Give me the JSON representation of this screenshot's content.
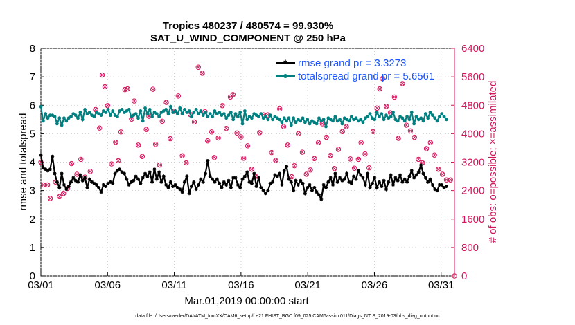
{
  "chart_data": {
    "type": "line",
    "title_line1": "Tropics 480237 / 480574 = 99.930%",
    "title_line2": "SAT_U_WIND_COMPONENT @ 250 hPa",
    "xlabel": "Mar.01,2019 00:00:00 start",
    "ylabel_left": "rmse and totalspread",
    "ylabel_right": "# of obs: o=possible; ×=assimilated",
    "x_tick_labels": [
      "03/01",
      "03/06",
      "03/11",
      "03/16",
      "03/21",
      "03/26",
      "03/31"
    ],
    "x_tick_days": [
      0,
      5,
      10,
      15,
      20,
      25,
      30
    ],
    "xlim": [
      0,
      31
    ],
    "ylim_left": [
      0,
      8
    ],
    "left_ticks": [
      "0",
      "1",
      "2",
      "3",
      "4",
      "5",
      "6",
      "7",
      "8"
    ],
    "ylim_right": [
      0,
      6400
    ],
    "right_ticks": [
      "0",
      "800",
      "1600",
      "2400",
      "3200",
      "4000",
      "4800",
      "5600",
      "6400"
    ],
    "legend": {
      "position": "top-right",
      "entries": [
        "rmse grand pr = 3.3273",
        "totalspread grand pr = 5.6561"
      ]
    },
    "colors": {
      "rmse": "#000000",
      "totalspread": "#008080",
      "obs": "#d4145a",
      "legend_text": "#1a53ff",
      "right_axis": "#d4145a"
    },
    "series": [
      {
        "name": "rmse",
        "values": [
          4.25,
          3.8,
          3.75,
          3.7,
          3.75,
          4.2,
          3.6,
          3.3,
          3.1,
          3.6,
          3.2,
          3.05,
          3.15,
          3.3,
          3.45,
          3.35,
          3.3,
          3.55,
          3.35,
          3.45,
          3.1,
          3.4,
          3.3,
          3.25,
          3.2,
          3.1,
          2.95,
          3.2,
          3.15,
          3.25,
          3.3,
          3.25,
          3.6,
          3.7,
          3.75,
          3.65,
          3.6,
          3.4,
          3.2,
          3.3,
          3.35,
          3.5,
          3.4,
          3.25,
          3.45,
          3.6,
          3.5,
          3.65,
          3.3,
          3.75,
          3.4,
          3.65,
          3.3,
          3.5,
          3.2,
          3.1,
          3.3,
          3.15,
          3.2,
          3.1,
          3.05,
          2.95,
          3.3,
          3.5,
          2.9,
          3.15,
          3.3,
          3.05,
          3.2,
          3.4,
          3.3,
          3.6,
          4.05,
          3.5,
          3.4,
          3.3,
          3.4,
          3.25,
          3.1,
          3.3,
          3.2,
          3.35,
          3.1,
          3.45,
          3.45,
          3.2,
          3.1,
          3.4,
          3.5,
          3.65,
          3.3,
          3.25,
          3.6,
          3.15,
          3.45,
          3.1,
          3.0,
          2.9,
          3.0,
          3.25,
          3.3,
          3.55,
          3.5,
          3.6,
          3.2,
          3.7,
          3.85,
          3.4,
          3.3,
          3.0,
          3.35,
          3.2,
          3.35,
          3.25,
          2.9,
          3.1,
          3.2,
          3.0,
          3.1,
          2.95,
          2.85,
          2.7,
          3.2,
          3.1,
          3.3,
          3.45,
          3.2,
          3.6,
          3.3,
          3.45,
          3.35,
          3.4,
          3.6,
          3.3,
          3.25,
          3.5,
          3.4,
          3.7,
          3.55,
          3.45,
          3.2,
          3.6,
          3.1,
          3.25,
          3.45,
          3.1,
          3.3,
          3.15,
          3.35,
          3.05,
          3.3,
          3.55,
          3.2,
          3.45,
          3.35,
          3.55,
          3.3,
          3.4,
          3.3,
          3.5,
          3.7,
          3.45,
          3.55,
          3.65,
          3.9,
          3.6,
          3.45,
          3.3,
          3.4,
          3.2,
          3.05,
          3.0,
          3.2,
          3.2,
          3.1,
          3.15
        ]
      },
      {
        "name": "totalspread",
        "values": [
          5.95,
          5.45,
          5.7,
          5.55,
          5.65,
          5.65,
          5.6,
          5.35,
          5.55,
          5.3,
          5.55,
          5.45,
          5.55,
          5.6,
          5.7,
          5.65,
          5.55,
          5.75,
          5.5,
          5.85,
          5.7,
          5.75,
          5.65,
          5.6,
          5.75,
          5.7,
          5.65,
          5.8,
          5.75,
          5.85,
          5.65,
          5.8,
          5.65,
          5.6,
          5.8,
          5.85,
          5.75,
          5.8,
          5.85,
          5.6,
          5.65,
          5.7,
          5.55,
          5.8,
          5.45,
          5.9,
          5.7,
          5.85,
          5.6,
          5.75,
          5.7,
          5.6,
          5.75,
          5.8,
          5.85,
          5.7,
          5.95,
          5.75,
          5.8,
          5.7,
          5.9,
          5.7,
          5.85,
          5.75,
          5.8,
          5.6,
          5.75,
          5.85,
          5.7,
          5.8,
          5.65,
          5.75,
          5.6,
          5.7,
          5.6,
          5.8,
          5.7,
          5.75,
          5.65,
          5.7,
          5.55,
          5.65,
          5.75,
          5.5,
          5.7,
          5.6,
          5.75,
          5.35,
          5.8,
          5.5,
          5.6,
          5.55,
          5.7,
          5.65,
          5.6,
          5.7,
          5.55,
          5.6,
          5.5,
          5.65,
          5.5,
          5.6,
          5.55,
          5.5,
          5.4,
          5.55,
          5.45,
          5.55,
          5.3,
          5.55,
          5.4,
          5.5,
          5.45,
          5.55,
          5.4,
          5.5,
          5.35,
          5.45,
          5.4,
          5.35,
          5.55,
          5.45,
          5.5,
          5.25,
          5.55,
          5.5,
          5.45,
          5.6,
          5.45,
          5.5,
          5.35,
          5.55,
          5.5,
          5.45,
          5.6,
          5.5,
          5.55,
          5.45,
          5.5,
          5.4,
          5.55,
          5.6,
          5.7,
          5.55,
          5.5,
          5.75,
          5.6,
          5.7,
          5.5,
          5.65,
          5.55,
          5.6,
          5.75,
          5.5,
          5.45,
          5.6,
          5.55,
          5.45,
          5.6,
          5.5,
          5.75,
          5.35,
          5.6,
          5.5,
          5.55,
          5.45,
          5.7,
          5.55,
          5.75,
          5.65,
          5.55,
          5.45,
          5.6,
          5.7,
          5.6,
          5.5
        ]
      }
    ],
    "obs_assimilated": [
      [
        0,
        3200
      ],
      [
        0.2,
        2560
      ],
      [
        0.5,
        2560
      ],
      [
        0.7,
        2180
      ],
      [
        1.1,
        2640
      ],
      [
        1.4,
        2230
      ],
      [
        1.7,
        2320
      ],
      [
        2.0,
        2460
      ],
      [
        2.3,
        3160
      ],
      [
        2.7,
        2860
      ],
      [
        3.0,
        3280
      ],
      [
        3.3,
        2780
      ],
      [
        3.7,
        2940
      ],
      [
        4.1,
        4680
      ],
      [
        4.4,
        4160
      ],
      [
        4.6,
        5650
      ],
      [
        4.8,
        5320
      ],
      [
        5.0,
        4790
      ],
      [
        5.3,
        3150
      ],
      [
        5.6,
        3760
      ],
      [
        5.8,
        3240
      ],
      [
        6.0,
        4050
      ],
      [
        6.3,
        5240
      ],
      [
        6.5,
        5260
      ],
      [
        6.8,
        4410
      ],
      [
        7.0,
        4920
      ],
      [
        7.3,
        3680
      ],
      [
        7.6,
        3360
      ],
      [
        7.9,
        4120
      ],
      [
        8.1,
        4490
      ],
      [
        8.4,
        5250
      ],
      [
        8.6,
        3700
      ],
      [
        8.9,
        3120
      ],
      [
        9.1,
        4350
      ],
      [
        9.4,
        4880
      ],
      [
        9.7,
        3860
      ],
      [
        10.0,
        4630
      ],
      [
        10.3,
        5060
      ],
      [
        10.6,
        3380
      ],
      [
        10.9,
        3180
      ],
      [
        11.2,
        4540
      ],
      [
        11.5,
        4330
      ],
      [
        11.8,
        5870
      ],
      [
        12.1,
        5700
      ],
      [
        12.3,
        4620
      ],
      [
        12.5,
        3800
      ],
      [
        12.8,
        4050
      ],
      [
        13.0,
        3330
      ],
      [
        13.3,
        3880
      ],
      [
        13.6,
        4790
      ],
      [
        13.9,
        4150
      ],
      [
        14.2,
        5030
      ],
      [
        14.4,
        5100
      ],
      [
        14.7,
        4020
      ],
      [
        15.0,
        3910
      ],
      [
        15.2,
        3310
      ],
      [
        15.5,
        3660
      ],
      [
        15.8,
        3000
      ],
      [
        16.1,
        2800
      ],
      [
        16.4,
        4030
      ],
      [
        16.7,
        4530
      ],
      [
        17.0,
        4530
      ],
      [
        17.3,
        3470
      ],
      [
        17.6,
        3250
      ],
      [
        17.9,
        4700
      ],
      [
        18.2,
        4200
      ],
      [
        18.5,
        3680
      ],
      [
        18.8,
        2790
      ],
      [
        19.0,
        3100
      ],
      [
        19.3,
        4000
      ],
      [
        19.6,
        3480
      ],
      [
        19.9,
        2860
      ],
      [
        20.2,
        2980
      ],
      [
        20.5,
        3300
      ],
      [
        20.8,
        3750
      ],
      [
        21.1,
        4280
      ],
      [
        21.4,
        3900
      ],
      [
        21.7,
        3390
      ],
      [
        22.0,
        3020
      ],
      [
        22.3,
        3560
      ],
      [
        22.6,
        4060
      ],
      [
        22.9,
        4200
      ],
      [
        23.2,
        3290
      ],
      [
        23.5,
        3030
      ],
      [
        23.8,
        3280
      ],
      [
        24.0,
        3750
      ],
      [
        24.3,
        3430
      ],
      [
        24.6,
        3040
      ],
      [
        24.9,
        4060
      ],
      [
        25.2,
        4720
      ],
      [
        25.4,
        5260
      ],
      [
        25.6,
        5550
      ],
      [
        25.9,
        4770
      ],
      [
        26.2,
        4590
      ],
      [
        26.5,
        5030
      ],
      [
        26.8,
        3870
      ],
      [
        27.1,
        5410
      ],
      [
        27.4,
        4240
      ],
      [
        27.7,
        4080
      ],
      [
        28.0,
        3900
      ],
      [
        28.3,
        3280
      ],
      [
        28.6,
        3180
      ],
      [
        28.9,
        3580
      ],
      [
        29.2,
        3750
      ],
      [
        29.5,
        3400
      ],
      [
        29.8,
        3000
      ],
      [
        30.1,
        2860
      ],
      [
        30.4,
        2700
      ],
      [
        30.7,
        2700
      ]
    ],
    "obs_possible": [
      [
        0,
        3200
      ],
      [
        0.2,
        2560
      ],
      [
        0.5,
        2560
      ],
      [
        0.7,
        2180
      ],
      [
        1.1,
        2640
      ],
      [
        1.4,
        2230
      ],
      [
        1.7,
        2320
      ],
      [
        2.0,
        2460
      ],
      [
        2.3,
        3160
      ],
      [
        2.7,
        2860
      ],
      [
        3.0,
        3280
      ],
      [
        3.3,
        2780
      ],
      [
        3.7,
        2940
      ],
      [
        4.1,
        4680
      ],
      [
        4.4,
        4160
      ],
      [
        4.6,
        5650
      ],
      [
        4.8,
        5320
      ],
      [
        5.0,
        4790
      ],
      [
        5.3,
        3150
      ],
      [
        5.6,
        3760
      ],
      [
        5.8,
        3240
      ],
      [
        6.0,
        4050
      ],
      [
        6.3,
        5240
      ],
      [
        6.5,
        5260
      ],
      [
        6.8,
        4410
      ],
      [
        7.0,
        4920
      ],
      [
        7.3,
        3680
      ],
      [
        7.6,
        3360
      ],
      [
        7.9,
        4120
      ],
      [
        8.1,
        4490
      ],
      [
        8.4,
        5250
      ],
      [
        8.6,
        3700
      ],
      [
        8.9,
        3120
      ],
      [
        9.1,
        4350
      ],
      [
        9.4,
        4880
      ],
      [
        9.7,
        3860
      ],
      [
        10.0,
        4630
      ],
      [
        10.3,
        5060
      ],
      [
        10.6,
        3380
      ],
      [
        10.9,
        3180
      ],
      [
        11.2,
        4540
      ],
      [
        11.5,
        4330
      ],
      [
        11.8,
        5870
      ],
      [
        12.1,
        5700
      ],
      [
        12.3,
        4620
      ],
      [
        12.5,
        3800
      ],
      [
        12.8,
        4050
      ],
      [
        13.0,
        3330
      ],
      [
        13.3,
        3880
      ],
      [
        13.6,
        4790
      ],
      [
        13.9,
        4150
      ],
      [
        14.2,
        5030
      ],
      [
        14.4,
        5100
      ],
      [
        14.7,
        4020
      ],
      [
        15.0,
        3910
      ],
      [
        15.2,
        3310
      ],
      [
        15.5,
        3660
      ],
      [
        15.8,
        3000
      ],
      [
        16.1,
        2800
      ],
      [
        16.4,
        4030
      ],
      [
        16.7,
        4530
      ],
      [
        17.0,
        4530
      ],
      [
        17.3,
        3470
      ],
      [
        17.6,
        3250
      ],
      [
        17.9,
        4700
      ],
      [
        18.2,
        4200
      ],
      [
        18.5,
        3680
      ],
      [
        18.8,
        2790
      ],
      [
        19.0,
        3100
      ],
      [
        19.3,
        4000
      ],
      [
        19.6,
        3480
      ],
      [
        19.9,
        2860
      ],
      [
        20.2,
        2980
      ],
      [
        20.5,
        3300
      ],
      [
        20.8,
        3750
      ],
      [
        21.1,
        4280
      ],
      [
        21.4,
        3900
      ],
      [
        21.7,
        3390
      ],
      [
        22.0,
        3020
      ],
      [
        22.3,
        3560
      ],
      [
        22.6,
        4060
      ],
      [
        22.9,
        4200
      ],
      [
        23.2,
        3290
      ],
      [
        23.5,
        3030
      ],
      [
        23.8,
        3280
      ],
      [
        24.0,
        3750
      ],
      [
        24.3,
        3430
      ],
      [
        24.6,
        3040
      ],
      [
        24.9,
        4060
      ],
      [
        25.2,
        4720
      ],
      [
        25.4,
        5260
      ],
      [
        25.6,
        5550
      ],
      [
        25.9,
        4770
      ],
      [
        26.2,
        4590
      ],
      [
        26.5,
        5030
      ],
      [
        26.8,
        3870
      ],
      [
        27.1,
        5410
      ],
      [
        27.4,
        4240
      ],
      [
        27.7,
        4080
      ],
      [
        28.0,
        3900
      ],
      [
        28.3,
        3280
      ],
      [
        28.6,
        3180
      ],
      [
        28.9,
        3580
      ],
      [
        29.2,
        3750
      ],
      [
        29.5,
        3400
      ],
      [
        29.8,
        3000
      ],
      [
        30.1,
        2860
      ],
      [
        30.4,
        2700
      ],
      [
        30.7,
        2700
      ],
      [
        31.0,
        0
      ]
    ],
    "footnote": "data file: /Users/raeder/DAI/ATM_forcXX/CAM6_setup/f.e21.FHIST_BGC.f09_025.CAM6assim.011/Diags_NTrS_2019-03/obs_diag_output.nc"
  }
}
